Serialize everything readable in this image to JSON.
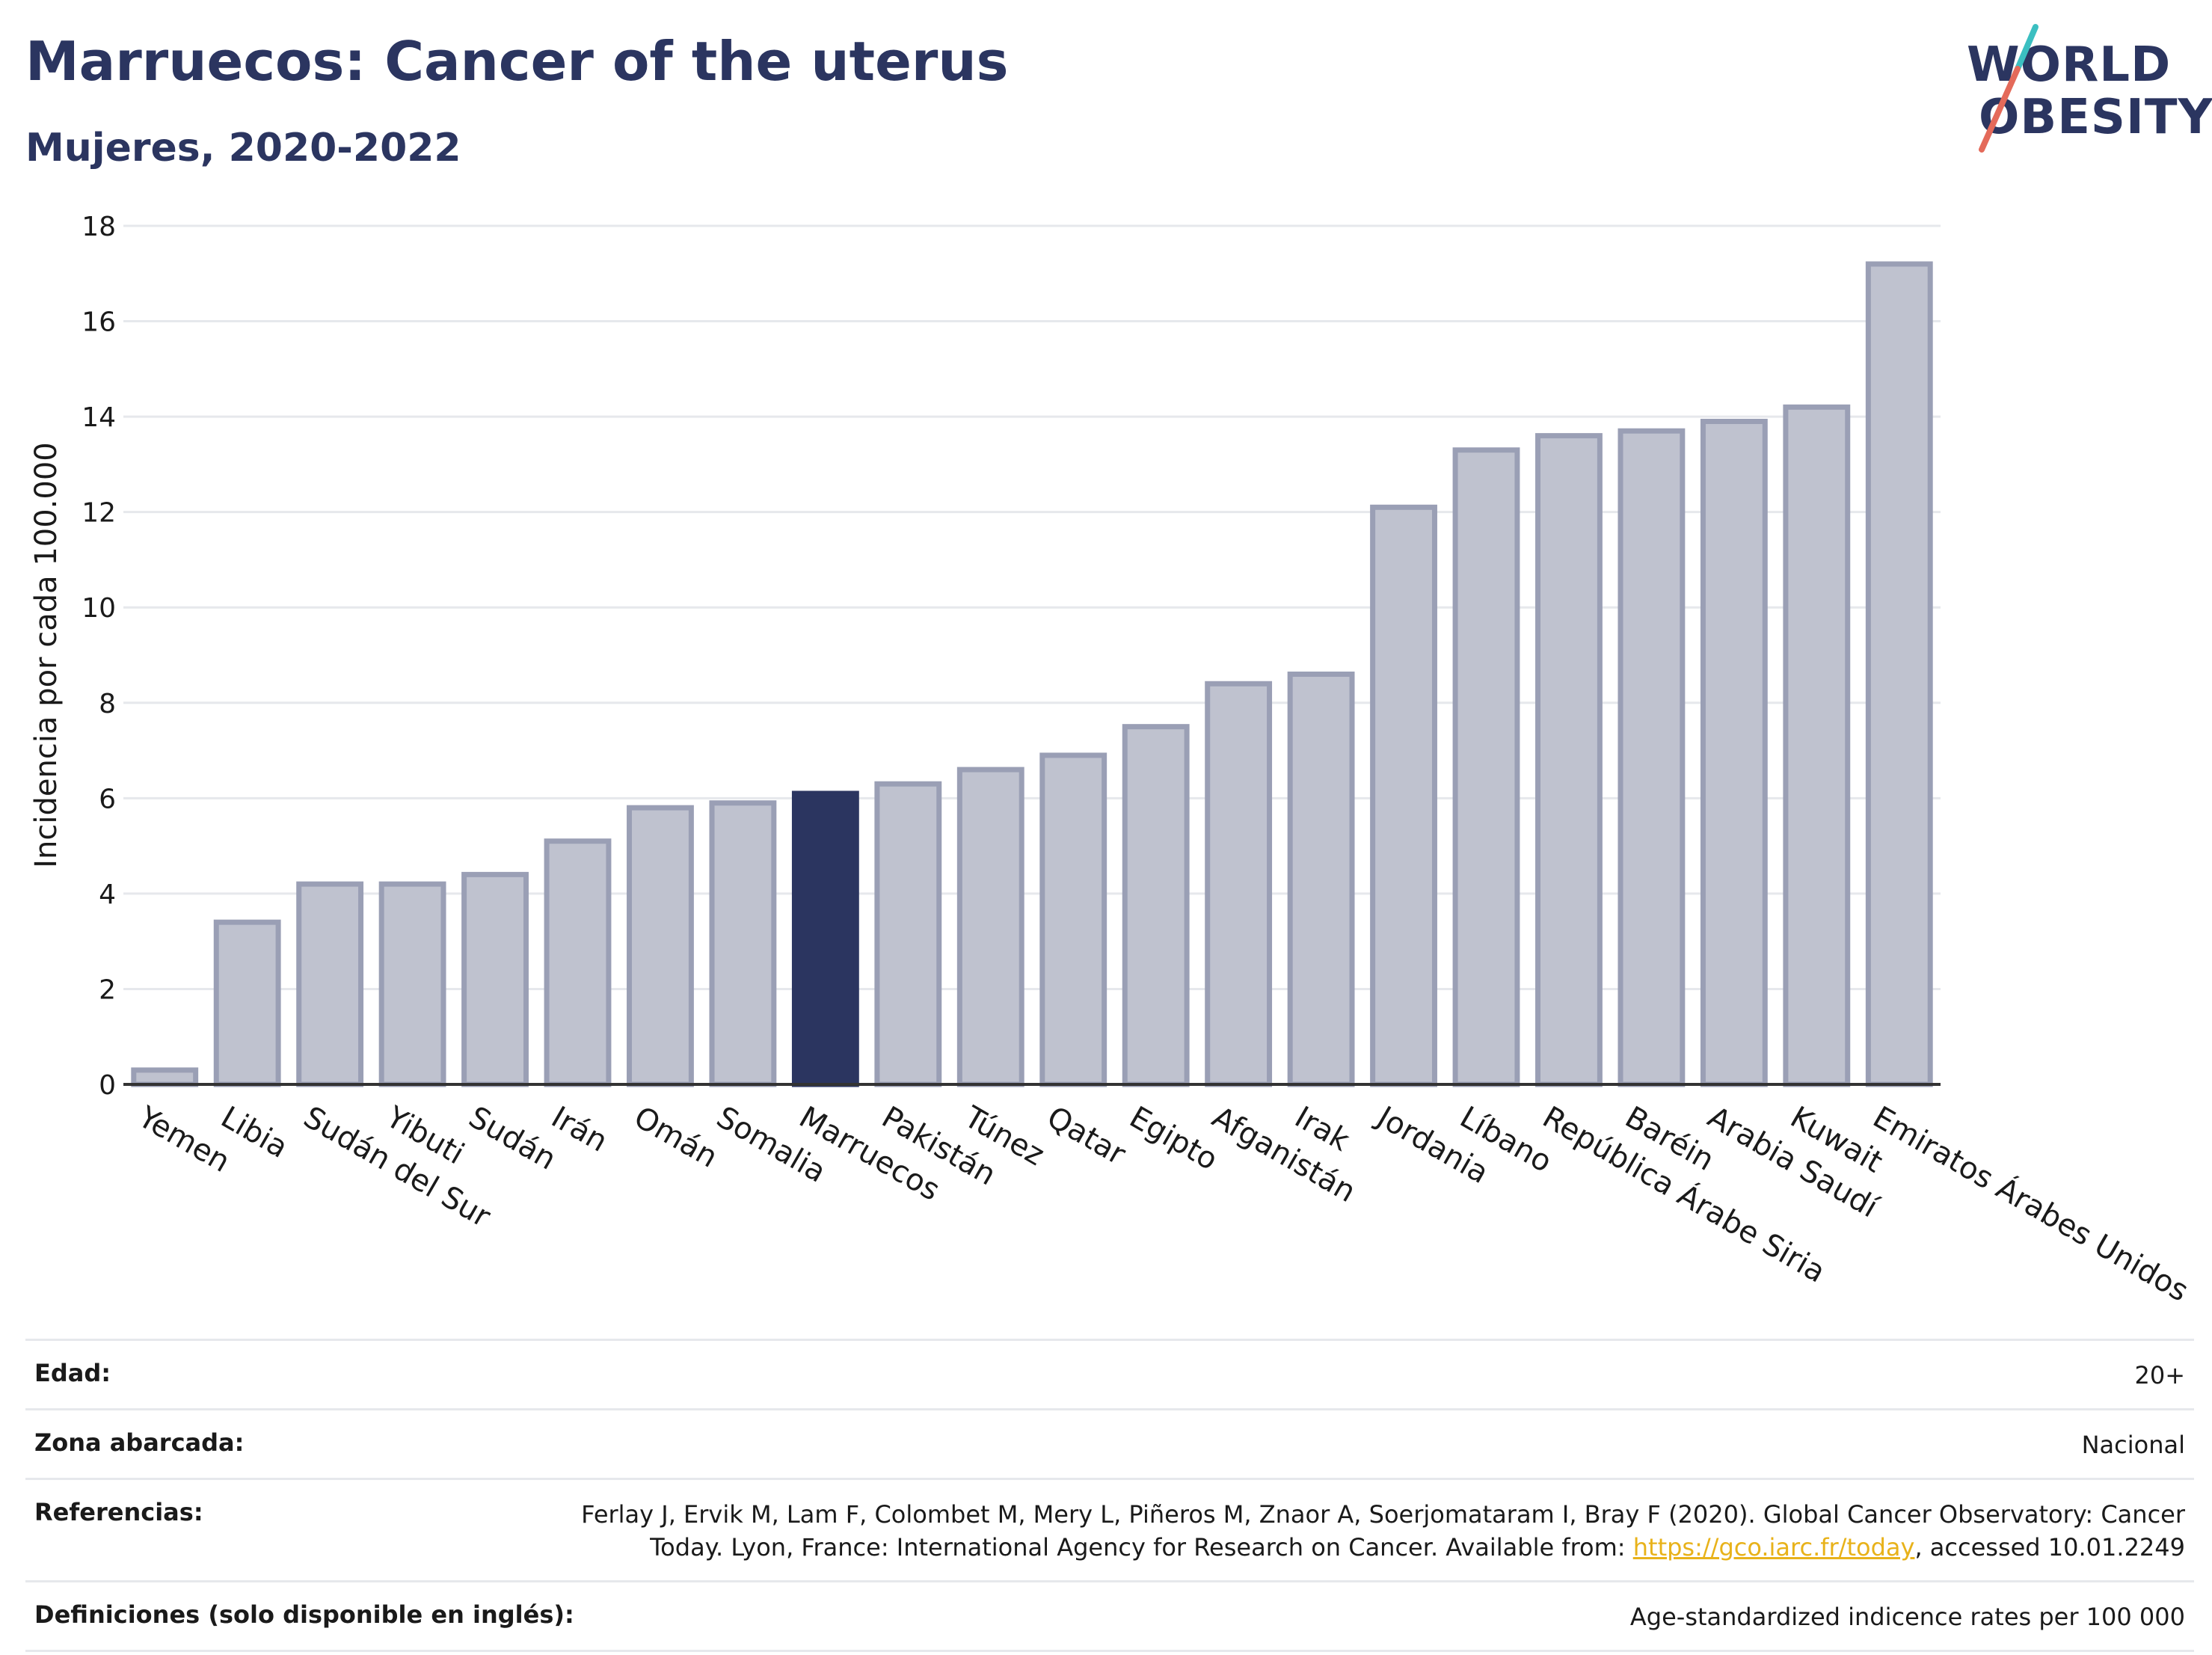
{
  "header": {
    "title": "Marruecos: Cancer of the uterus",
    "subtitle": "Mujeres, 2020-2022"
  },
  "logo": {
    "line1": "WORLD",
    "line2": "OBESITY"
  },
  "colors": {
    "title": "#2b3560",
    "bar": "#bfc2cf",
    "bar_edge": "#9a9fb5",
    "highlight": "#2b3560",
    "grid": "#e6e8ec",
    "logo_teal": "#3bbfc1",
    "logo_coral": "#e46a5a",
    "link": "#e8b21a"
  },
  "chart_data": {
    "type": "bar",
    "ylabel": "Incidencia por cada 100.000",
    "ylim": [
      0,
      18
    ],
    "yticks": [
      0,
      2,
      4,
      6,
      8,
      10,
      12,
      14,
      16,
      18
    ],
    "grid": true,
    "highlight": "Marruecos",
    "categories": [
      "Yemen",
      "Libia",
      "Sudán del Sur",
      "Yibuti",
      "Sudán",
      "Irán",
      "Omán",
      "Somalia",
      "Marruecos",
      "Pakistán",
      "Túnez",
      "Qatar",
      "Egipto",
      "Afganistán",
      "Irak",
      "Jordania",
      "Líbano",
      "República Árabe Siria",
      "Baréin",
      "Arabia Saudí",
      "Kuwait",
      "Emiratos Árabes Unidos"
    ],
    "values": [
      0.3,
      3.4,
      4.2,
      4.2,
      4.4,
      5.1,
      5.8,
      5.9,
      6.1,
      6.3,
      6.6,
      6.9,
      7.5,
      8.4,
      8.6,
      12.1,
      13.3,
      13.6,
      13.7,
      13.9,
      14.2,
      17.2
    ]
  },
  "info": {
    "edad_label": "Edad:",
    "edad_value": "20+",
    "zona_label": "Zona abarcada:",
    "zona_value": "Nacional",
    "ref_label": "Referencias:",
    "ref_line1": "Ferlay J, Ervik M, Lam F, Colombet M, Mery L, Piñeros M, Znaor A, Soerjomataram I, Bray F (2020). Global Cancer Observatory: Cancer",
    "ref_line2_pre": "Today. Lyon, France: International Agency for Research on Cancer. Available from: ",
    "ref_link": "https://gco.iarc.fr/today",
    "ref_line2_post": ", accessed 10.01.2249",
    "def_label": "Definiciones (solo disponible en inglés):",
    "def_value": "Age-standardized indicence rates per 100 000"
  }
}
